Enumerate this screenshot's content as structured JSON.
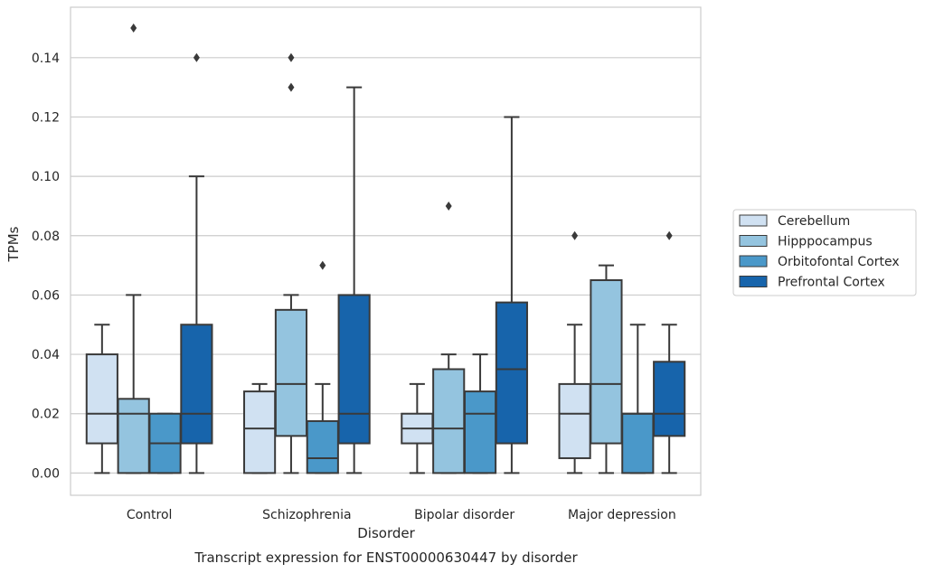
{
  "chart_data": {
    "type": "box",
    "caption": "Transcript expression for ENST00000630447 by disorder",
    "xlabel": "Disorder",
    "ylabel": "TPMs",
    "ylim": [
      -0.0075,
      0.157
    ],
    "yticks": [
      0.0,
      0.02,
      0.04,
      0.06,
      0.08,
      0.1,
      0.12,
      0.14
    ],
    "ytick_labels": [
      "0.00",
      "0.02",
      "0.04",
      "0.06",
      "0.08",
      "0.10",
      "0.12",
      "0.14"
    ],
    "grid": "horizontal",
    "legend_position": "right",
    "categories": [
      "Control",
      "Schizophrenia",
      "Bipolar disorder",
      "Major depression"
    ],
    "series": [
      {
        "name": "Cerebellum",
        "color": "#d0e1f2",
        "boxes": [
          {
            "whislo": 0.0,
            "q1": 0.01,
            "med": 0.02,
            "q3": 0.04,
            "whishi": 0.05,
            "fliers": []
          },
          {
            "whislo": 0.0,
            "q1": 0.0,
            "med": 0.015,
            "q3": 0.0275,
            "whishi": 0.03,
            "fliers": []
          },
          {
            "whislo": 0.0,
            "q1": 0.01,
            "med": 0.015,
            "q3": 0.02,
            "whishi": 0.03,
            "fliers": []
          },
          {
            "whislo": 0.0,
            "q1": 0.005,
            "med": 0.02,
            "q3": 0.03,
            "whishi": 0.05,
            "fliers": [
              0.08
            ]
          }
        ]
      },
      {
        "name": "Hipppocampus",
        "color": "#94c4df",
        "boxes": [
          {
            "whislo": 0.0,
            "q1": 0.0,
            "med": 0.02,
            "q3": 0.025,
            "whishi": 0.06,
            "fliers": [
              0.15
            ]
          },
          {
            "whislo": 0.0,
            "q1": 0.0125,
            "med": 0.03,
            "q3": 0.055,
            "whishi": 0.06,
            "fliers": [
              0.13,
              0.14
            ]
          },
          {
            "whislo": 0.0,
            "q1": 0.0,
            "med": 0.015,
            "q3": 0.035,
            "whishi": 0.04,
            "fliers": [
              0.09
            ]
          },
          {
            "whislo": 0.0,
            "q1": 0.01,
            "med": 0.03,
            "q3": 0.065,
            "whishi": 0.07,
            "fliers": []
          }
        ]
      },
      {
        "name": "Orbitofontal Cortex",
        "color": "#4a98c9",
        "boxes": [
          {
            "whislo": 0.0,
            "q1": 0.0,
            "med": 0.01,
            "q3": 0.02,
            "whishi": 0.02,
            "fliers": []
          },
          {
            "whislo": 0.0,
            "q1": 0.0,
            "med": 0.005,
            "q3": 0.0175,
            "whishi": 0.03,
            "fliers": [
              0.07
            ]
          },
          {
            "whislo": 0.0,
            "q1": 0.0,
            "med": 0.02,
            "q3": 0.0275,
            "whishi": 0.04,
            "fliers": []
          },
          {
            "whislo": 0.0,
            "q1": 0.0,
            "med": 0.02,
            "q3": 0.02,
            "whishi": 0.05,
            "fliers": []
          }
        ]
      },
      {
        "name": "Prefrontal Cortex",
        "color": "#1764ab",
        "boxes": [
          {
            "whislo": 0.0,
            "q1": 0.01,
            "med": 0.02,
            "q3": 0.05,
            "whishi": 0.1,
            "fliers": [
              0.14
            ]
          },
          {
            "whislo": 0.0,
            "q1": 0.01,
            "med": 0.02,
            "q3": 0.06,
            "whishi": 0.13,
            "fliers": []
          },
          {
            "whislo": 0.0,
            "q1": 0.01,
            "med": 0.035,
            "q3": 0.0575,
            "whishi": 0.12,
            "fliers": []
          },
          {
            "whislo": 0.0,
            "q1": 0.0125,
            "med": 0.02,
            "q3": 0.0375,
            "whishi": 0.05,
            "fliers": [
              0.08
            ]
          }
        ]
      }
    ]
  }
}
